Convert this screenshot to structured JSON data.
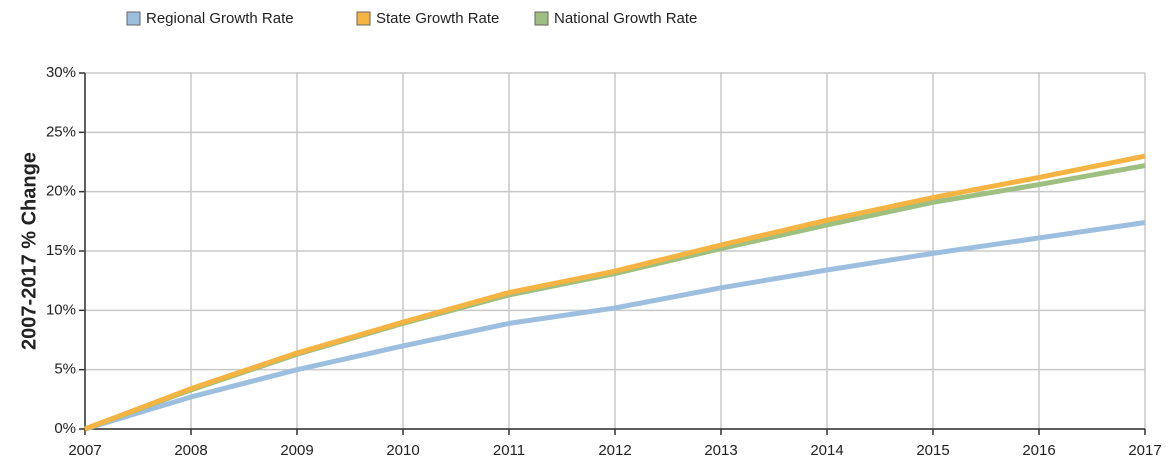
{
  "chart_data": {
    "type": "line",
    "y_label": "2007-2017 % Change",
    "x": [
      2007,
      2008,
      2009,
      2010,
      2011,
      2012,
      2013,
      2014,
      2015,
      2016,
      2017
    ],
    "xlim": [
      2007,
      2017
    ],
    "xticks": [
      2007,
      2008,
      2009,
      2010,
      2011,
      2012,
      2013,
      2014,
      2015,
      2016,
      2017
    ],
    "ylim": [
      0,
      30
    ],
    "yticks": [
      {
        "value": 0,
        "label": "0%"
      },
      {
        "value": 5,
        "label": "5%"
      },
      {
        "value": 10,
        "label": "10%"
      },
      {
        "value": 15,
        "label": "15%"
      },
      {
        "value": 20,
        "label": "20%"
      },
      {
        "value": 25,
        "label": "25%"
      },
      {
        "value": 30,
        "label": "30%"
      }
    ],
    "grid": true,
    "legend": "top",
    "series": [
      {
        "name": "Regional Growth Rate",
        "color": "#9dbfdf",
        "values": [
          0,
          2.7,
          5.0,
          7.0,
          8.9,
          10.2,
          11.9,
          13.4,
          14.8,
          16.1,
          17.4
        ]
      },
      {
        "name": "State Growth Rate",
        "color": "#f5b342",
        "values": [
          0,
          3.4,
          6.4,
          9.0,
          11.5,
          13.3,
          15.5,
          17.6,
          19.5,
          21.2,
          23.0
        ]
      },
      {
        "name": "National Growth Rate",
        "color": "#9dbf7f",
        "values": [
          0,
          3.3,
          6.3,
          8.9,
          11.3,
          13.1,
          15.2,
          17.2,
          19.1,
          20.6,
          22.2
        ]
      }
    ]
  }
}
